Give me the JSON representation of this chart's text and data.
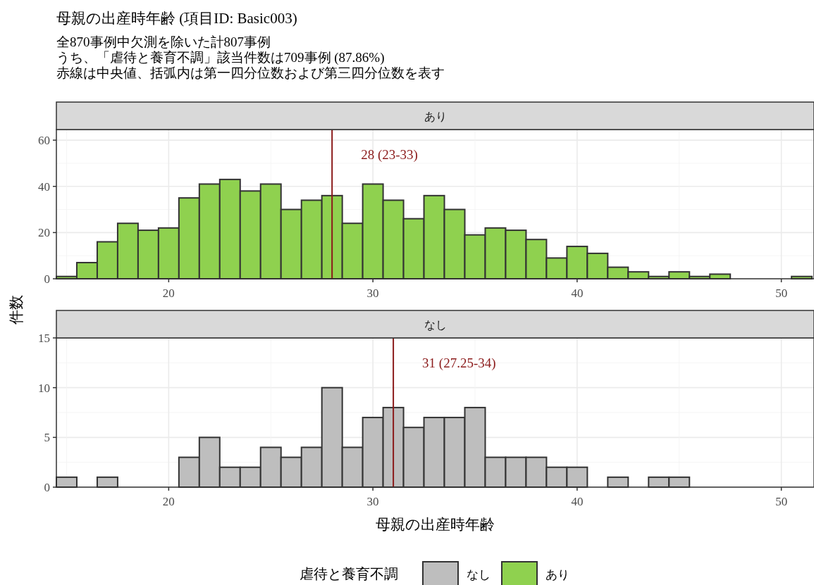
{
  "chart_data": [
    {
      "type": "histogram",
      "title": "母親の出産時年齢 (項目ID: Basic003)",
      "subtitle": "全870事例中欠測を除いた計807事例",
      "annotations": [
        "うち、「虐待と養育不調」該当件数は709事例 (87.86%)",
        "赤線は中央値、括弧内は第一四分位数および第三四分位数を表す"
      ],
      "ylabel": "件数",
      "legend_title": "虐待と養育不調",
      "legend": "bottom",
      "bins": [
        14.5,
        15.5,
        16.5,
        17.5,
        18.5,
        19.5,
        20.5,
        21.5,
        22.5,
        23.5,
        24.5,
        25.5,
        26.5,
        27.5,
        28.5,
        29.5,
        30.5,
        31.5,
        32.5,
        33.5,
        34.5,
        35.5,
        36.5,
        37.5,
        38.5,
        39.5,
        40.5,
        41.5,
        42.5,
        43.5,
        44.5,
        45.5,
        46.5,
        47.5,
        48.5,
        49.5,
        50.5,
        51.5
      ],
      "series": [
        {
          "name": "あり",
          "color": "#8fd14f",
          "values": [
            1,
            7,
            16,
            24,
            21,
            22,
            35,
            41,
            43,
            38,
            41,
            30,
            34,
            36,
            24,
            41,
            34,
            26,
            36,
            30,
            19,
            22,
            21,
            17,
            9,
            14,
            11,
            5,
            3,
            1,
            3,
            1,
            2,
            0,
            0,
            0,
            1
          ]
        }
      ],
      "xlim": [
        14.5,
        51.6
      ],
      "xticks": [
        20,
        30,
        40,
        50
      ],
      "ylim": [
        0,
        64.6
      ],
      "yticks": [
        0,
        20,
        40,
        60
      ],
      "grid": true,
      "ref_lines": [
        {
          "axis": "x",
          "value": 28,
          "label": "28 (23-33)",
          "color": "#8b1a1a"
        }
      ]
    },
    {
      "type": "histogram",
      "xlabel": "母親の出産時年齢",
      "bins": [
        14.5,
        15.5,
        16.5,
        17.5,
        18.5,
        19.5,
        20.5,
        21.5,
        22.5,
        23.5,
        24.5,
        25.5,
        26.5,
        27.5,
        28.5,
        29.5,
        30.5,
        31.5,
        32.5,
        33.5,
        34.5,
        35.5,
        36.5,
        37.5,
        38.5,
        39.5,
        40.5,
        41.5,
        42.5,
        43.5,
        44.5,
        45.5,
        46.5,
        47.5,
        48.5,
        49.5,
        50.5,
        51.5
      ],
      "series": [
        {
          "name": "なし",
          "color": "#bebebe",
          "values": [
            1,
            0,
            1,
            0,
            0,
            0,
            3,
            5,
            2,
            2,
            4,
            3,
            4,
            10,
            4,
            7,
            8,
            6,
            7,
            7,
            8,
            3,
            3,
            3,
            2,
            2,
            0,
            1,
            0,
            1,
            1,
            0,
            0,
            0,
            0,
            0,
            0
          ]
        }
      ],
      "xlim": [
        14.5,
        51.6
      ],
      "xticks": [
        20,
        30,
        40,
        50
      ],
      "ylim": [
        0,
        15
      ],
      "yticks": [
        0,
        5,
        10,
        15
      ],
      "grid": true,
      "ref_lines": [
        {
          "axis": "x",
          "value": 31,
          "label": "31 (27.25-34)",
          "color": "#8b1a1a"
        }
      ]
    }
  ]
}
